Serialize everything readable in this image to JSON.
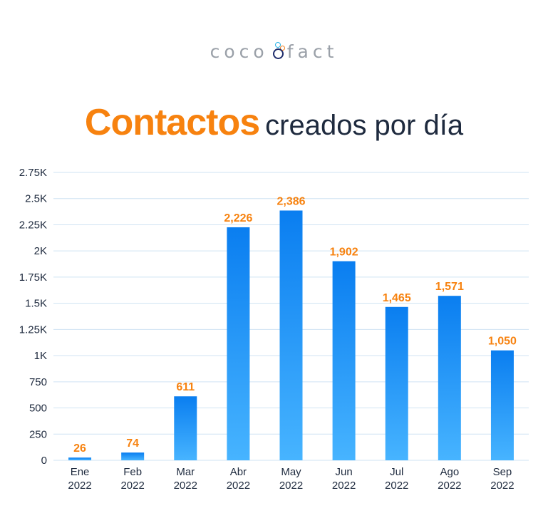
{
  "brand": {
    "logo_left": "coco",
    "logo_right": "fact",
    "logo_full": "cocofact"
  },
  "header": {
    "title_bold": "Contactos",
    "title_rest": "creados por día"
  },
  "colors": {
    "accent": "#f7820f",
    "bar_top": "#0a7ef0",
    "bar_bottom": "#47b4ff",
    "grid": "#cfe3f3",
    "text": "#1e2a3e"
  },
  "chart_data": {
    "type": "bar",
    "title": "Contactos creados por día",
    "categories": [
      [
        "Ene",
        "2022"
      ],
      [
        "Feb",
        "2022"
      ],
      [
        "Mar",
        "2022"
      ],
      [
        "Abr",
        "2022"
      ],
      [
        "May",
        "2022"
      ],
      [
        "Jun",
        "2022"
      ],
      [
        "Jul",
        "2022"
      ],
      [
        "Ago",
        "2022"
      ],
      [
        "Sep",
        "2022"
      ]
    ],
    "values": [
      26,
      74,
      611,
      2226,
      2386,
      1902,
      1465,
      1571,
      1050
    ],
    "value_labels": [
      "26",
      "74",
      "611",
      "2,226",
      "2,386",
      "1,902",
      "1,465",
      "1,571",
      "1,050"
    ],
    "ylim": [
      0,
      2750
    ],
    "yticks": [
      0,
      250,
      500,
      750,
      1000,
      1250,
      1500,
      1750,
      2000,
      2250,
      2500,
      2750
    ],
    "ytick_labels": [
      "0",
      "250",
      "500",
      "750",
      "1K",
      "1.25K",
      "1.5K",
      "1.75K",
      "2K",
      "2.25K",
      "2.5K",
      "2.75K"
    ],
    "xlabel": "",
    "ylabel": "",
    "grid": true,
    "legend": "none"
  }
}
